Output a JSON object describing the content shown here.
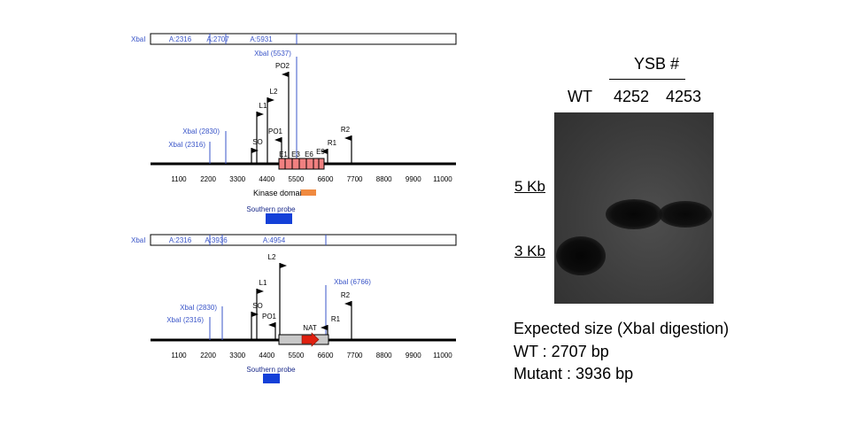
{
  "colors": {
    "dna": "#000000",
    "xba_text": "#3a55c8",
    "xba_line": "#3a55c8",
    "exon": "#f08080",
    "kinase": "#f08a40",
    "probe": "#1440d8",
    "nat": "#e02010",
    "cassette": "#c8c8c8"
  },
  "wt_map": {
    "xba_bar": {
      "label": "XbaI",
      "segments": [
        "A:2316",
        "A:2707",
        "A:5931"
      ]
    },
    "xba_sites": [
      "XbaI (2316)",
      "XbaI (2830)",
      "XbaI (5537)"
    ],
    "primers": [
      "SO",
      "L1",
      "L2",
      "PO1",
      "PO2",
      "R1",
      "R2"
    ],
    "exons": [
      "E1",
      "E3",
      "E6",
      "E9"
    ],
    "ticks": [
      "1100",
      "2200",
      "3300",
      "4400",
      "5500",
      "6600",
      "7700",
      "8800",
      "9900",
      "11000"
    ],
    "kinase_label": "Kinase domain",
    "probe_label": "Southern probe"
  },
  "mut_map": {
    "xba_bar": {
      "label": "XbaI",
      "segments": [
        "A:2316",
        "A:3936",
        "A:4954"
      ]
    },
    "xba_sites": [
      "XbaI (2316)",
      "XbaI (2830)",
      "XbaI (6766)"
    ],
    "primers": [
      "SO",
      "L1",
      "L2",
      "PO1",
      "R1",
      "R2"
    ],
    "cassette_label": "NAT",
    "ticks": [
      "1100",
      "2200",
      "3300",
      "4400",
      "5500",
      "6600",
      "7700",
      "8800",
      "9900",
      "11000"
    ],
    "probe_label": "Southern probe"
  },
  "blot": {
    "group_label": "YSB #",
    "lanes": [
      "WT",
      "4252",
      "4253"
    ],
    "markers": [
      "5 Kb",
      "3 Kb"
    ]
  },
  "notes": {
    "title": "Expected size (XbaI digestion)",
    "wt": "WT : 2707 bp",
    "mutant": "Mutant : 3936 bp"
  }
}
